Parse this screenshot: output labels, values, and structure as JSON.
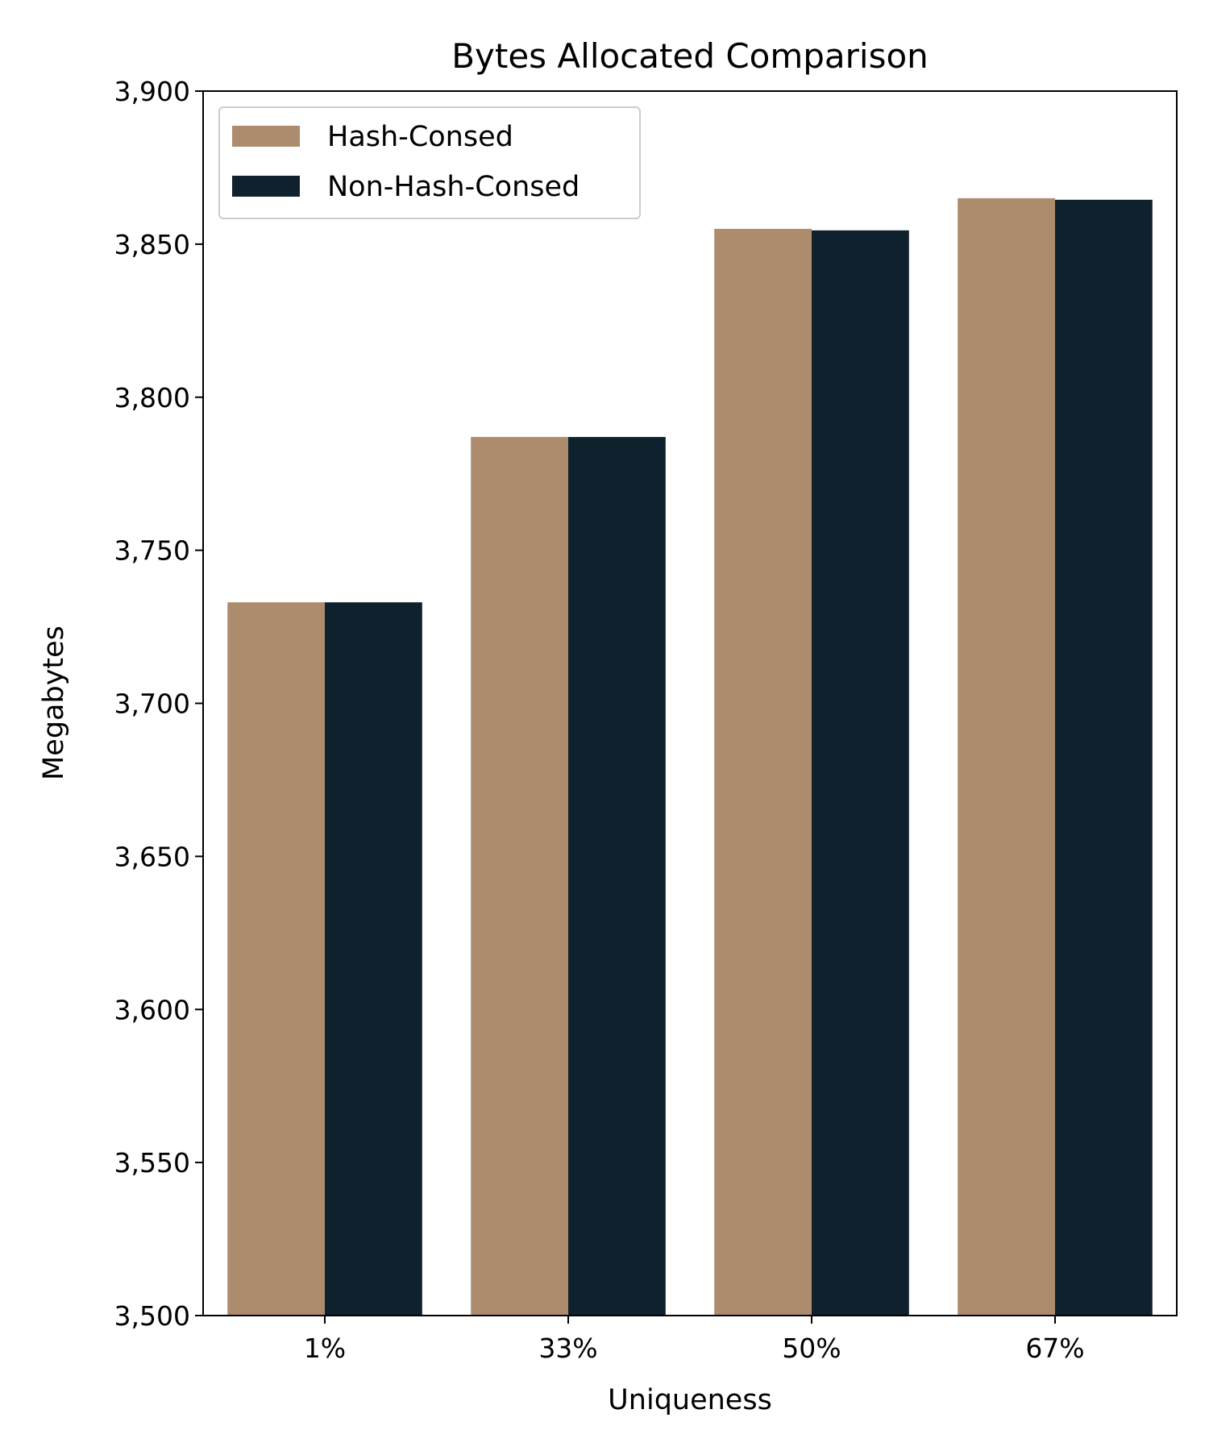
{
  "chart_data": {
    "type": "bar",
    "title": "Bytes Allocated Comparison",
    "xlabel": "Uniqueness",
    "ylabel": "Megabytes",
    "categories": [
      "1%",
      "33%",
      "50%",
      "67%"
    ],
    "series": [
      {
        "name": "Hash-Consed",
        "color": "#ad8b6d",
        "values": [
          3733,
          3787,
          3855,
          3865
        ]
      },
      {
        "name": "Non-Hash-Consed",
        "color": "#0f212d",
        "values": [
          3733,
          3787,
          3854.5,
          3864.5
        ]
      }
    ],
    "ylim": [
      3500,
      3900
    ],
    "yticks": [
      3500,
      3550,
      3600,
      3650,
      3700,
      3750,
      3800,
      3850,
      3900
    ],
    "ytick_labels": [
      "3,500",
      "3,550",
      "3,600",
      "3,650",
      "3,700",
      "3,750",
      "3,800",
      "3,850",
      "3,900"
    ],
    "grid": false,
    "legend_position": "top-left"
  }
}
